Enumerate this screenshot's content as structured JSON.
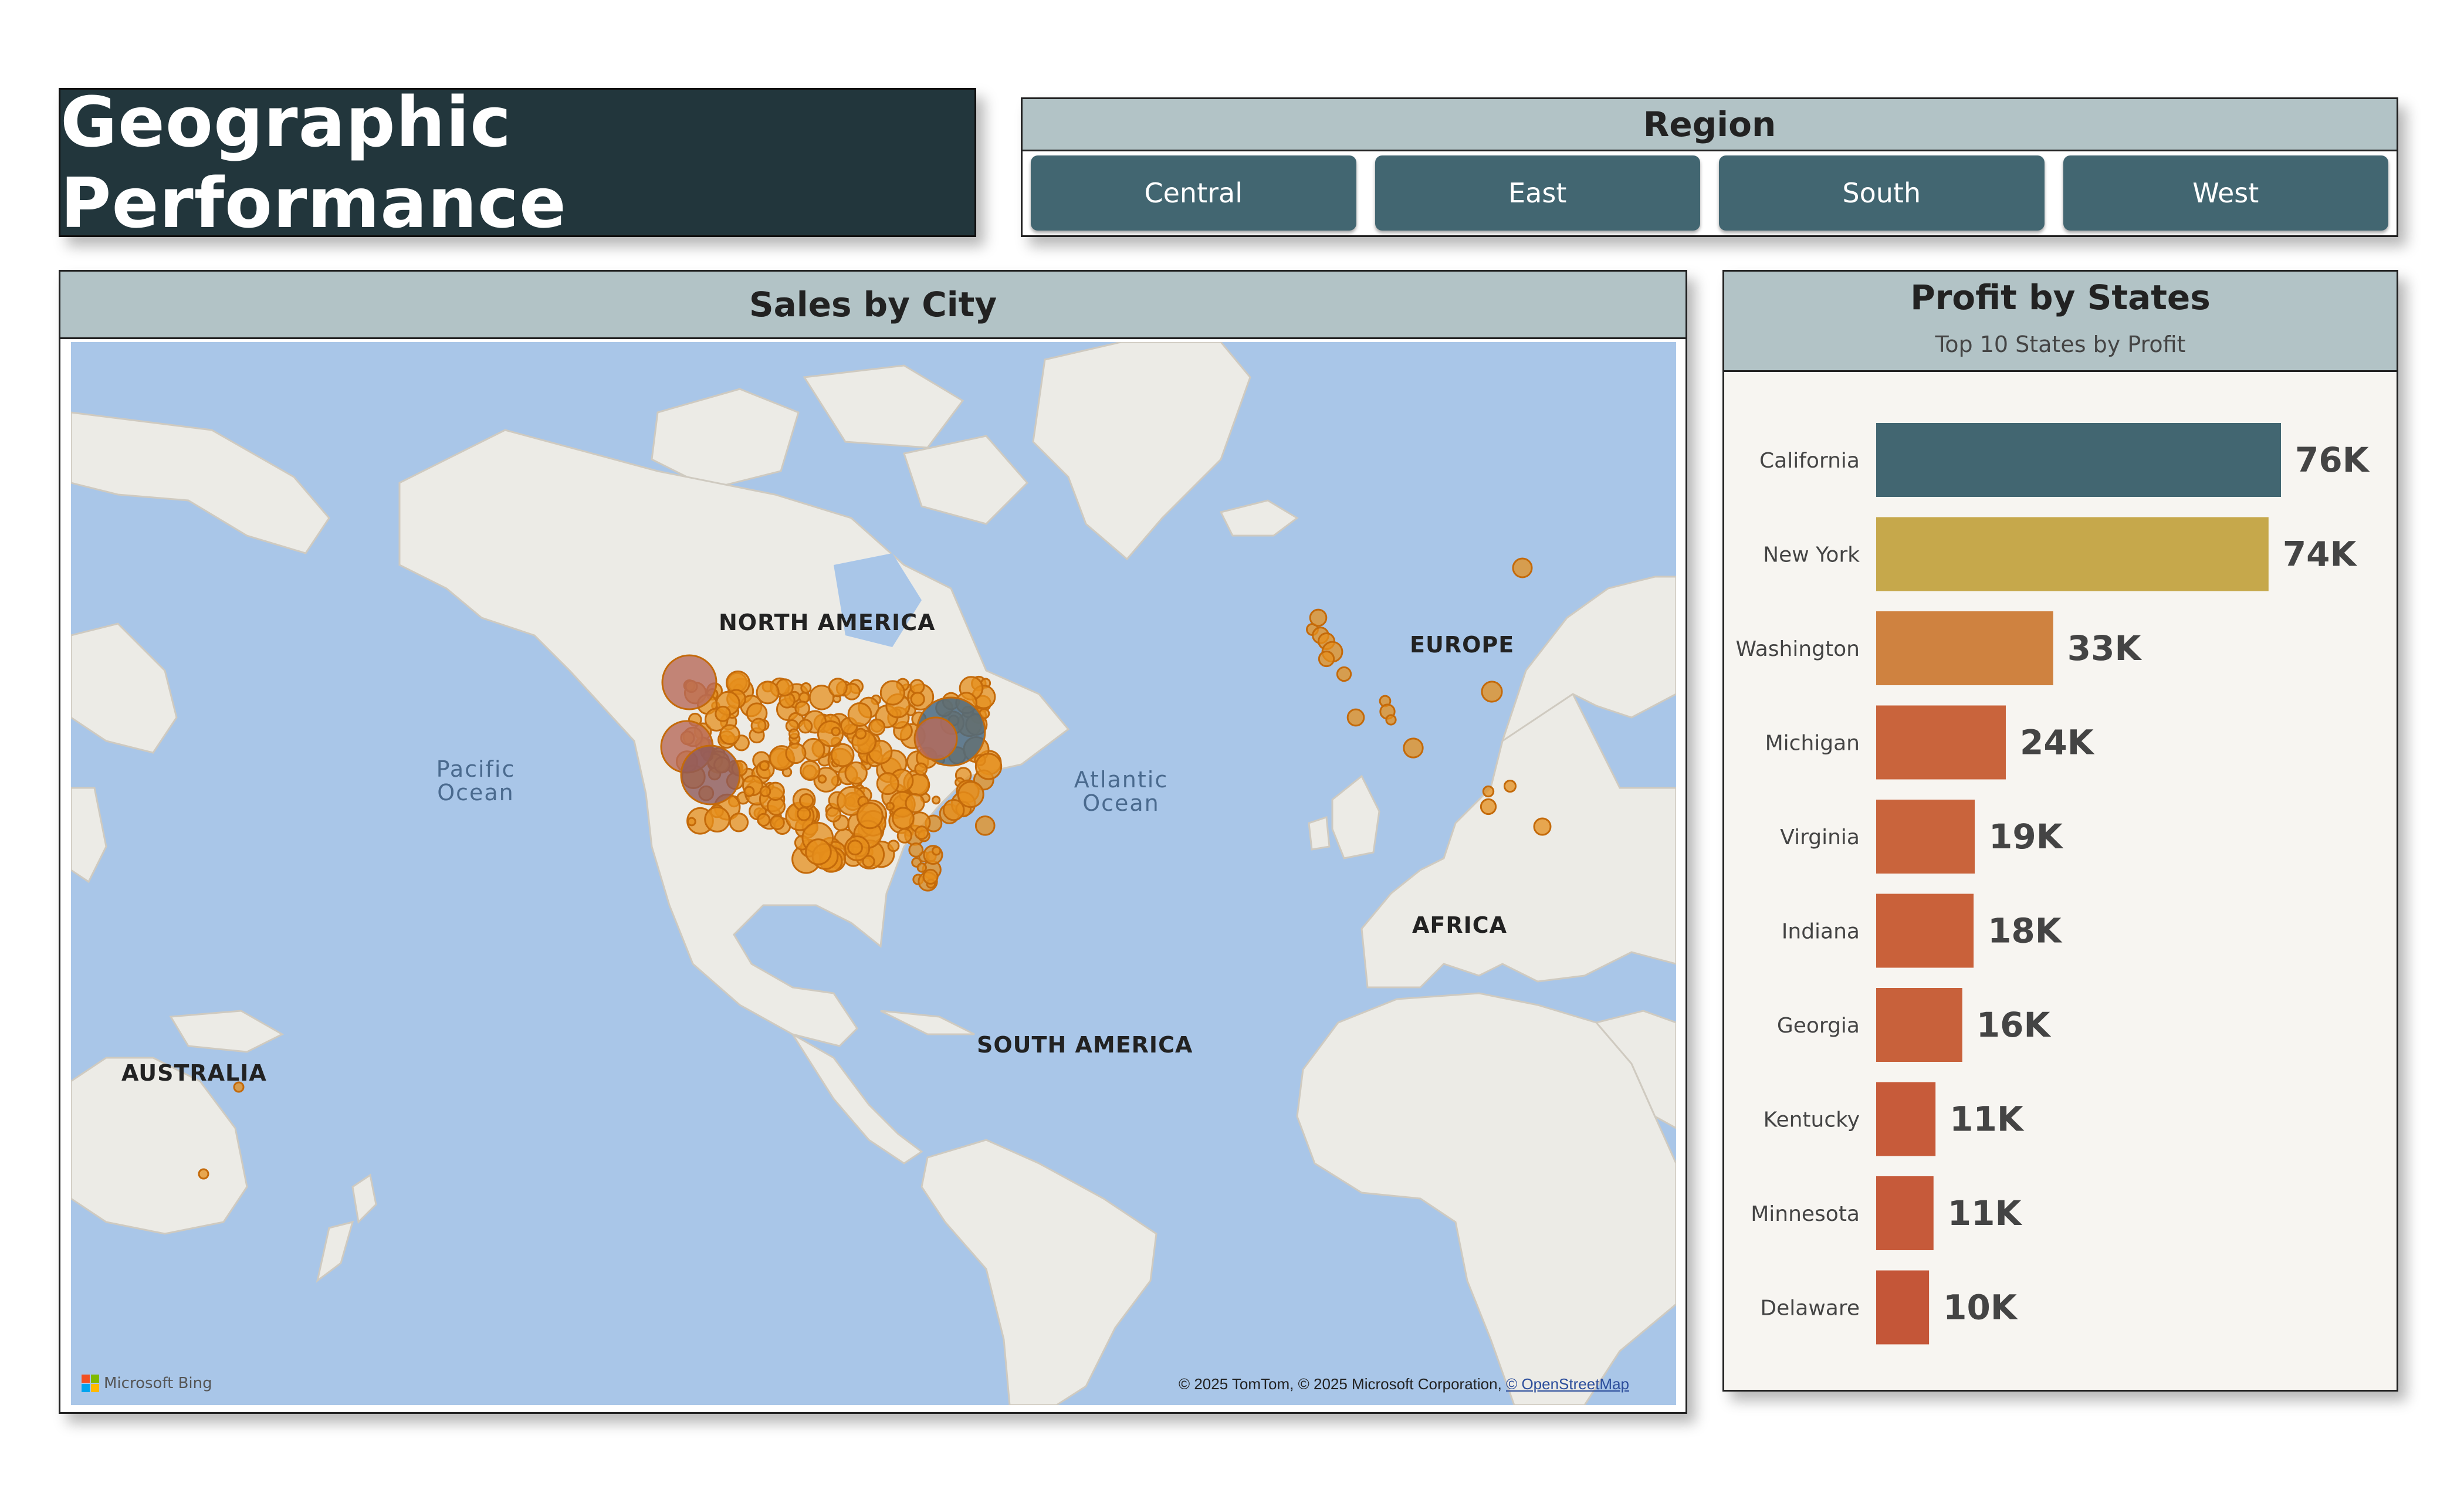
{
  "title": "Geographic Performance",
  "region": {
    "header": "Region",
    "buttons": [
      "Central",
      "East",
      "South",
      "West"
    ]
  },
  "map": {
    "header": "Sales by City",
    "labels": {
      "north_america": "NORTH AMERICA",
      "europe": "EUROPE",
      "africa": "AFRICA",
      "south_america": "SOUTH AMERICA",
      "australia": "AUSTRALIA",
      "pacific": "Pacific Ocean",
      "atlantic": "Atlantic Ocean"
    },
    "logo": "Microsoft Bing",
    "attribution_text": "© 2025 TomTom, © 2025 Microsoft Corporation,",
    "attribution_link": "© OpenStreetMap"
  },
  "profit": {
    "header": "Profit by States",
    "subtitle": "Top 10 States by Profit"
  },
  "chart_data": {
    "type": "bar",
    "orientation": "horizontal",
    "title": "Profit by States",
    "subtitle": "Top 10 States by Profit",
    "categories": [
      "California",
      "New York",
      "Washington",
      "Michigan",
      "Virginia",
      "Indiana",
      "Georgia",
      "Kentucky",
      "Minnesota",
      "Delaware"
    ],
    "values": [
      76381,
      74039,
      33403,
      24463,
      18598,
      18383,
      16250,
      11199,
      10823,
      9977
    ],
    "data_labels": [
      "76K",
      "74K",
      "33K",
      "24K",
      "19K",
      "18K",
      "16K",
      "11K",
      "11K",
      "10K"
    ],
    "colors": [
      "#426671",
      "#c6a84b",
      "#cf8240",
      "#c9643c",
      "#c9643c",
      "#c9613a",
      "#c8613b",
      "#c75b3a",
      "#c65a3a",
      "#c45638"
    ],
    "xlim": [
      0,
      76381
    ],
    "grid": false
  },
  "colors": {
    "title_bg": "#22363c",
    "header_bg": "#b2c3c6",
    "button_bg": "#426671",
    "ocean": "#a9c6e8",
    "land": "#ecebe6",
    "city_bubble": "#e58f1c"
  }
}
